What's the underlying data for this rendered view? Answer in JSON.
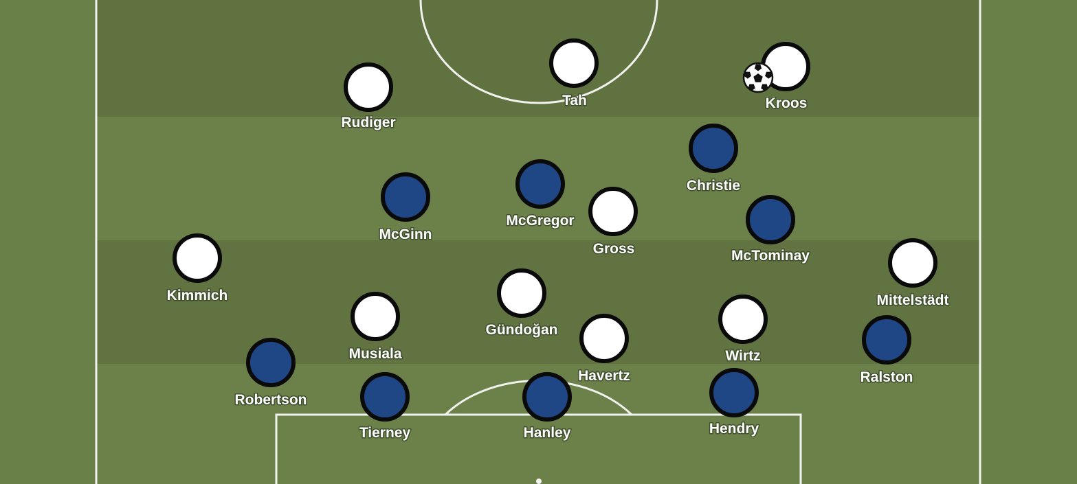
{
  "colors": {
    "pitch_light": "#6a8049",
    "pitch_dark": "#5f7240",
    "line": "#f2f2ee",
    "team_white": "#ffffff",
    "team_blue": "#1f4786",
    "outline": "#0a0a0a"
  },
  "ball": {
    "icon": "soccer-ball-icon",
    "carrier": "Kroos"
  },
  "players": [
    {
      "name": "Tah",
      "team": "white"
    },
    {
      "name": "Kroos",
      "team": "white"
    },
    {
      "name": "Rudiger",
      "team": "white"
    },
    {
      "name": "Christie",
      "team": "blue"
    },
    {
      "name": "McGinn",
      "team": "blue"
    },
    {
      "name": "McGregor",
      "team": "blue"
    },
    {
      "name": "Gross",
      "team": "white"
    },
    {
      "name": "McTominay",
      "team": "blue"
    },
    {
      "name": "Kimmich",
      "team": "white"
    },
    {
      "name": "Mittelstädt",
      "team": "white"
    },
    {
      "name": "Musiala",
      "team": "white"
    },
    {
      "name": "Gündoğan",
      "team": "white"
    },
    {
      "name": "Havertz",
      "team": "white"
    },
    {
      "name": "Wirtz",
      "team": "white"
    },
    {
      "name": "Robertson",
      "team": "blue"
    },
    {
      "name": "Ralston",
      "team": "blue"
    },
    {
      "name": "Tierney",
      "team": "blue"
    },
    {
      "name": "Hanley",
      "team": "blue"
    },
    {
      "name": "Hendry",
      "team": "blue"
    }
  ]
}
